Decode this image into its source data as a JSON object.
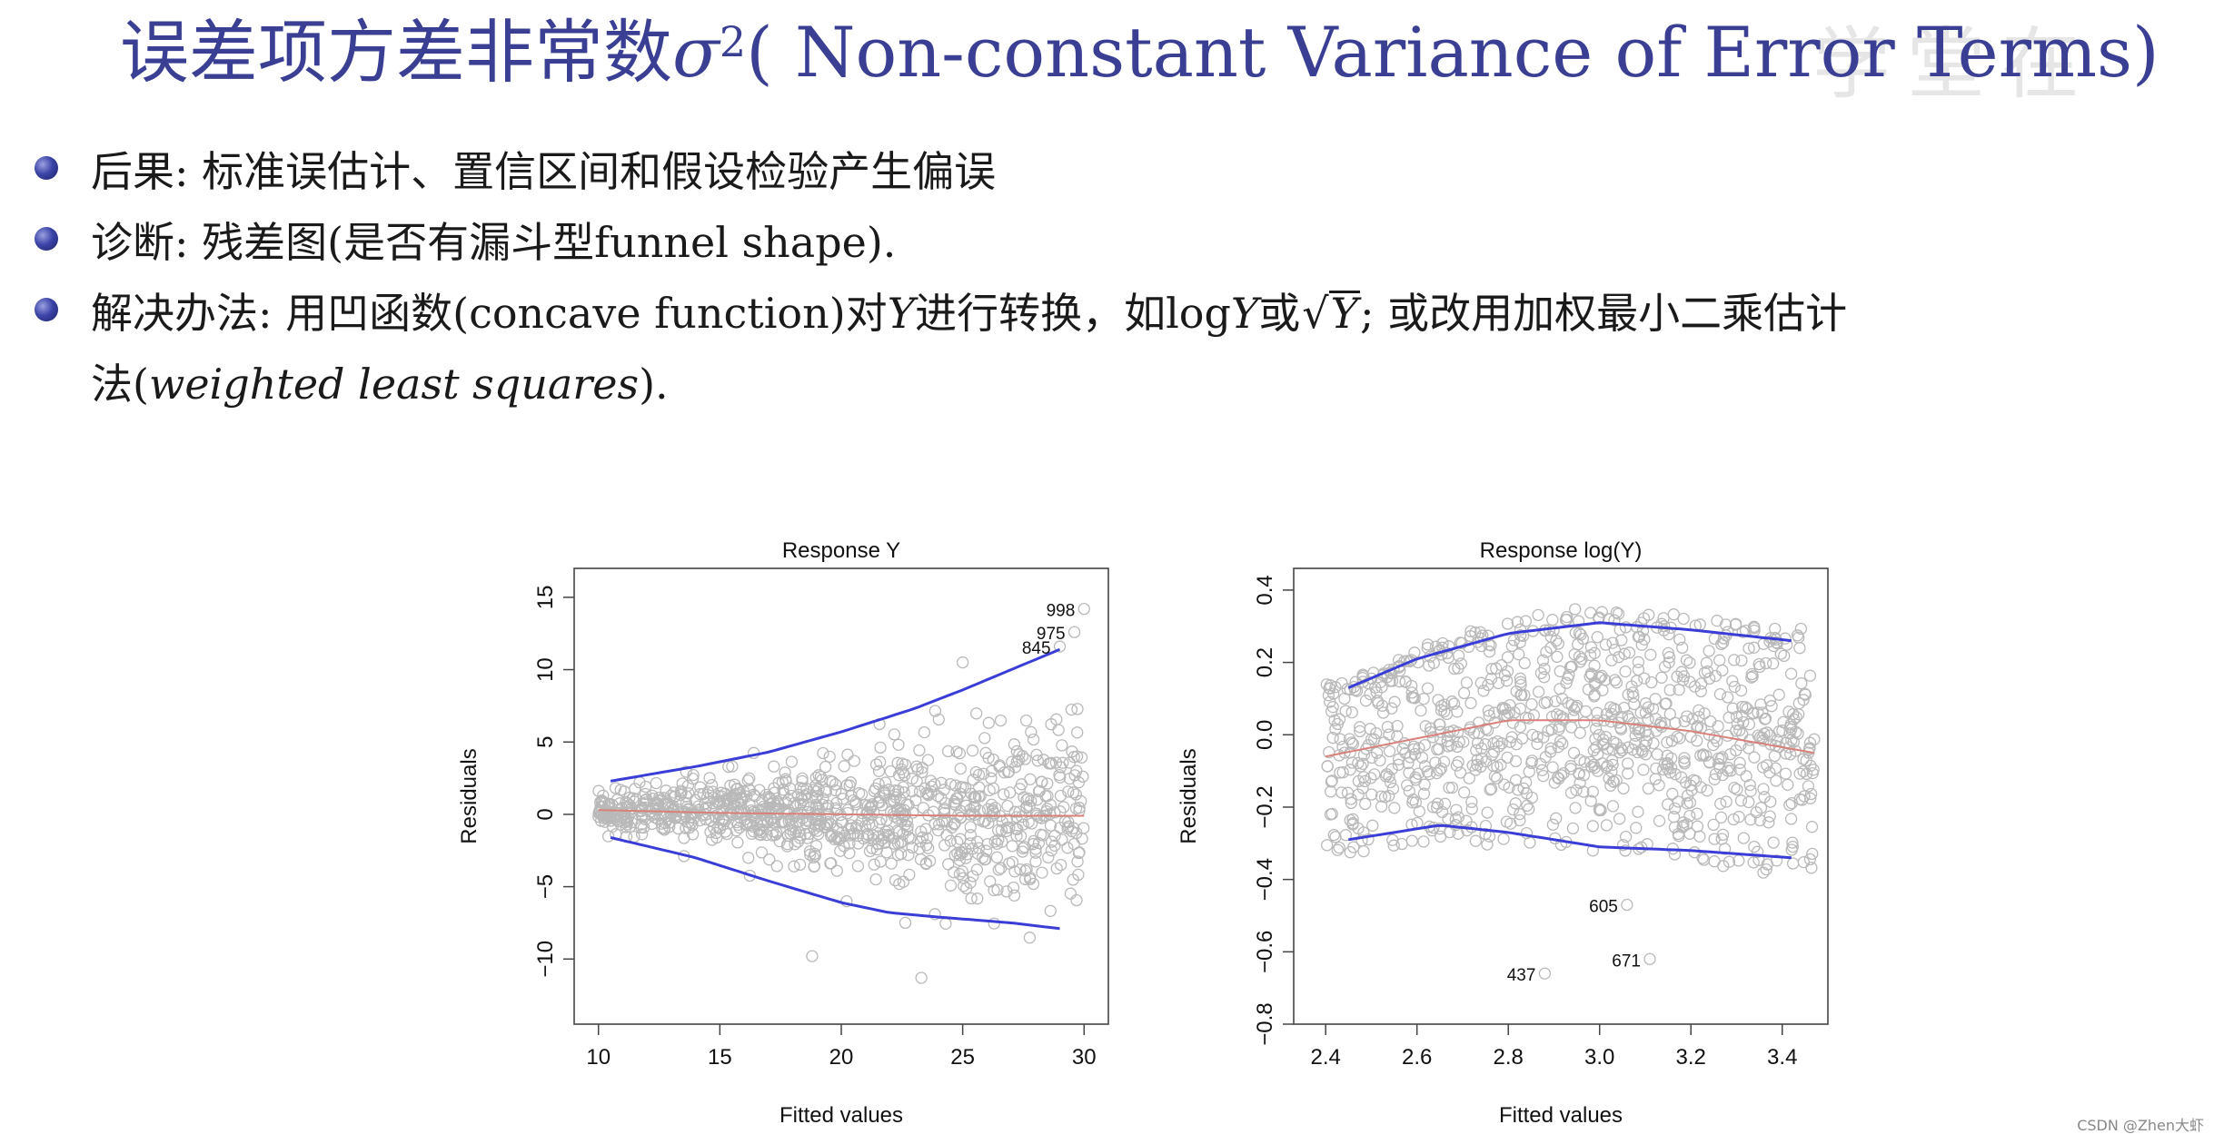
{
  "title": {
    "cn": "误差项方差非常数",
    "sigma": "σ",
    "exponent": "2",
    "en": "( Non-constant Variance of Error Terms)"
  },
  "bullets": [
    {
      "label": "后果:",
      "text": "标准误估计、置信区间和假设检验产生偏误"
    },
    {
      "label": "诊断:",
      "text": "残差图(是否有漏斗型funnel shape)."
    },
    {
      "label": "解决办法:",
      "part1": "用凹函数(concave function)对",
      "var": "Y",
      "part2": "进行转换，如log",
      "var2": "Y",
      "part3": "或",
      "sqrt_var": "Y",
      "part4": "; 或改用加权最小二乘估计",
      "line2_pre": "法(",
      "line2_em": "weighted least squares",
      "line2_post": ")."
    }
  ],
  "watermark": "学堂在",
  "credit": "CSDN @Zhen大虾",
  "colors": {
    "title": "#3a3f93",
    "fit_band": "#3b3ed6",
    "smooth": "#d9807a",
    "points": "#b9b9b9"
  },
  "chart_data": [
    {
      "type": "scatter",
      "title": "Response Y",
      "xlabel": "Fitted values",
      "ylabel": "Residuals",
      "xlim": [
        9,
        31
      ],
      "ylim": [
        -14.5,
        17
      ],
      "xticks": [
        "10",
        "15",
        "20",
        "25",
        "30"
      ],
      "xtick_values": [
        10,
        15,
        20,
        25,
        30
      ],
      "yticks": [
        "15",
        "10",
        "5",
        "0",
        "−5",
        "−10"
      ],
      "ytick_values": [
        15,
        10,
        5,
        0,
        -5,
        -10
      ],
      "x_range": [
        10,
        30
      ],
      "spread": [
        0.6,
        3.2
      ],
      "n_points": 1000,
      "upper_band": {
        "x": [
          10.5,
          14,
          17,
          20,
          23,
          25,
          27,
          29
        ],
        "y": [
          2.3,
          3.3,
          4.3,
          5.7,
          7.3,
          8.6,
          10.0,
          11.4
        ]
      },
      "lower_band": {
        "x": [
          10.5,
          14,
          17,
          20,
          22,
          24,
          27,
          29
        ],
        "y": [
          -1.6,
          -3.0,
          -4.6,
          -6.1,
          -6.8,
          -7.1,
          -7.5,
          -7.9
        ]
      },
      "smooth": {
        "x": [
          10,
          15,
          20,
          25,
          30
        ],
        "y": [
          0.3,
          0.1,
          0.0,
          -0.1,
          -0.1
        ]
      },
      "outliers": [
        {
          "label": "998",
          "x": 30.0,
          "y": 14.2
        },
        {
          "label": "975",
          "x": 29.6,
          "y": 12.6
        },
        {
          "label": "845",
          "x": 29.0,
          "y": 11.6
        }
      ],
      "extra_points": [
        {
          "x": 23.3,
          "y": -11.3
        },
        {
          "x": 18.8,
          "y": -9.8
        },
        {
          "x": 25.0,
          "y": 10.5
        }
      ]
    },
    {
      "type": "scatter",
      "title": "Response log(Y)",
      "xlabel": "Fitted values",
      "ylabel": "Residuals",
      "xlim": [
        2.33,
        3.5
      ],
      "ylim": [
        -0.8,
        0.46
      ],
      "xticks": [
        "2.4",
        "2.6",
        "2.8",
        "3.0",
        "3.2",
        "3.4"
      ],
      "xtick_values": [
        2.4,
        2.6,
        2.8,
        3.0,
        3.2,
        3.4
      ],
      "yticks": [
        "0.4",
        "0.2",
        "0.0",
        "−0.2",
        "−0.4",
        "−0.6",
        "−0.8"
      ],
      "ytick_values": [
        0.4,
        0.2,
        0.0,
        -0.2,
        -0.4,
        -0.6,
        -0.8
      ],
      "x_range": [
        2.4,
        3.47
      ],
      "spread": [
        0.2,
        0.2
      ],
      "n_points": 1000,
      "upper_band": {
        "x": [
          2.45,
          2.6,
          2.8,
          3.0,
          3.2,
          3.42
        ],
        "y": [
          0.13,
          0.21,
          0.28,
          0.31,
          0.29,
          0.26
        ]
      },
      "lower_band": {
        "x": [
          2.45,
          2.65,
          2.8,
          3.0,
          3.2,
          3.42
        ],
        "y": [
          -0.29,
          -0.25,
          -0.27,
          -0.31,
          -0.32,
          -0.34
        ]
      },
      "smooth": {
        "x": [
          2.4,
          2.6,
          2.8,
          3.0,
          3.2,
          3.47
        ],
        "y": [
          -0.06,
          -0.01,
          0.04,
          0.04,
          0.01,
          -0.05
        ]
      },
      "outliers": [
        {
          "label": "605",
          "x": 3.06,
          "y": -0.47
        },
        {
          "label": "671",
          "x": 3.11,
          "y": -0.62
        },
        {
          "label": "437",
          "x": 2.88,
          "y": -0.66
        }
      ],
      "extra_points": []
    }
  ]
}
